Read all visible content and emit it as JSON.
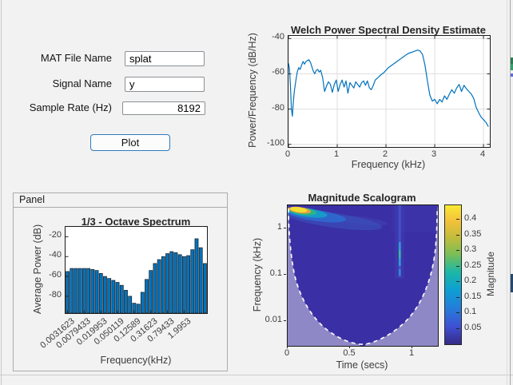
{
  "form": {
    "fields": [
      {
        "label": "MAT File Name",
        "value": "splat",
        "type": "text"
      },
      {
        "label": "Signal Name",
        "value": "y",
        "type": "text"
      },
      {
        "label": "Sample Rate (Hz)",
        "value": "8192",
        "type": "numeric"
      }
    ],
    "plot_button_label": "Plot"
  },
  "panel": {
    "title": "Panel"
  },
  "chart_data": [
    {
      "type": "line",
      "title": "Welch Power Spectral Density Estimate",
      "xlabel": "Frequency (kHz)",
      "ylabel": "Power/Frequency (dB/Hz)",
      "xlim": [
        0,
        4.13
      ],
      "ylim": [
        -101.5,
        -38.5
      ],
      "xticks": [
        0,
        1,
        2,
        3,
        4
      ],
      "yticks": [
        -40,
        -60,
        -80,
        -100
      ],
      "grid": true,
      "line_color": "#0072BD",
      "x": [
        0,
        0.02,
        0.04,
        0.06,
        0.08,
        0.1,
        0.12,
        0.15,
        0.18,
        0.21,
        0.24,
        0.27,
        0.3,
        0.33,
        0.36,
        0.39,
        0.42,
        0.45,
        0.48,
        0.51,
        0.54,
        0.57,
        0.6,
        0.63,
        0.66,
        0.7,
        0.74,
        0.78,
        0.82,
        0.86,
        0.9,
        0.94,
        0.98,
        1.02,
        1.06,
        1.1,
        1.14,
        1.18,
        1.22,
        1.26,
        1.3,
        1.34,
        1.38,
        1.42,
        1.46,
        1.5,
        1.54,
        1.58,
        1.62,
        1.66,
        1.7,
        1.74,
        1.78,
        1.82,
        1.86,
        1.9,
        1.95,
        2.0,
        2.05,
        2.1,
        2.15,
        2.2,
        2.25,
        2.3,
        2.35,
        2.4,
        2.45,
        2.5,
        2.55,
        2.6,
        2.65,
        2.7,
        2.75,
        2.8,
        2.85,
        2.9,
        2.95,
        3.0,
        3.05,
        3.1,
        3.15,
        3.2,
        3.25,
        3.3,
        3.35,
        3.4,
        3.45,
        3.5,
        3.55,
        3.6,
        3.65,
        3.7,
        3.75,
        3.8,
        3.85,
        3.9,
        3.95,
        4.0,
        4.05,
        4.1
      ],
      "y": [
        -54,
        -57,
        -66,
        -80,
        -84,
        -76,
        -70,
        -64,
        -59,
        -56.5,
        -57.5,
        -55,
        -53,
        -54.5,
        -53,
        -52.5,
        -52,
        -53.5,
        -56,
        -58.5,
        -60,
        -58,
        -57.5,
        -59,
        -58,
        -62,
        -70,
        -67,
        -64.5,
        -66,
        -70.5,
        -66,
        -63.5,
        -70,
        -66,
        -63.5,
        -67.5,
        -64,
        -71,
        -65,
        -66.5,
        -68,
        -64.5,
        -66,
        -67.5,
        -65,
        -64,
        -66.5,
        -64,
        -68,
        -69,
        -66.5,
        -63.5,
        -62.5,
        -61.5,
        -60.5,
        -59.5,
        -58,
        -56.5,
        -55.5,
        -54.5,
        -53.5,
        -52.5,
        -51.5,
        -50.5,
        -49.5,
        -48.5,
        -48,
        -47.5,
        -47,
        -46.5,
        -47,
        -49,
        -55,
        -64,
        -72,
        -75.5,
        -74.5,
        -77,
        -74.5,
        -76,
        -72.5,
        -74.5,
        -71.5,
        -69,
        -71,
        -68,
        -66,
        -70,
        -66.5,
        -68.5,
        -70,
        -71.5,
        -74,
        -79,
        -82,
        -84.5,
        -86,
        -87.5,
        -90
      ]
    },
    {
      "type": "bar",
      "title": "1/3 - Octave Spectrum",
      "xlabel": "Frequency(kHz)",
      "ylabel": "Average Power (dB)",
      "ylim": [
        -97,
        -10
      ],
      "yticks": [
        -20,
        -40,
        -60,
        -80
      ],
      "xtick_labels": [
        "0.0031623",
        "0.0079433",
        "0.019953",
        "0.050119",
        "0.12589",
        "0.31623",
        "0.79433",
        "1.9953"
      ],
      "xtick_bar_index": [
        0,
        4,
        8,
        12,
        16,
        20,
        24,
        28
      ],
      "bar_color": "#0072BD",
      "bar_edge_color": "#1c1c1c",
      "values": [
        -55,
        -52,
        -52,
        -52,
        -52,
        -52,
        -53,
        -54,
        -57,
        -60,
        -62,
        -64,
        -66,
        -69,
        -74,
        -80,
        -87,
        -88,
        -76,
        -63,
        -54,
        -47,
        -43,
        -40,
        -37,
        -35,
        -36,
        -38,
        -40,
        -39,
        -33,
        -22,
        -31,
        -47
      ]
    },
    {
      "type": "heatmap",
      "title": "Magnitude Scalogram",
      "xlabel": "Time (secs)",
      "ylabel": "Frequency (kHz)",
      "xticks": [
        0,
        0.5,
        1
      ],
      "xlim": [
        0,
        1.205
      ],
      "yscale": "log",
      "yticks_khz": [
        1,
        0.1,
        0.01
      ],
      "ylim_khz": [
        0.0029,
        3.16
      ],
      "colormap": "parula",
      "background_value_color": "#3a2fa5",
      "out_of_cone_color": "#8f88c6",
      "features": [
        {
          "name": "high-energy ridge",
          "time_range": [
            0.02,
            0.55
          ],
          "freq_khz_range": [
            1.3,
            3.0
          ],
          "peak_time": 0.1,
          "peak_freq_khz": 2.4,
          "peak_magnitude": 0.45
        },
        {
          "name": "transient vertical event",
          "time": 0.9,
          "freq_khz_range": [
            0.1,
            3.16
          ],
          "magnitude": 0.2
        },
        {
          "name": "cone-of-influence",
          "style": "white dashed boundary, shaded outside"
        }
      ],
      "colorbar": {
        "label": "Magnitude",
        "ticks": [
          0.05,
          0.1,
          0.15,
          0.2,
          0.25,
          0.3,
          0.35,
          0.4
        ],
        "range": [
          0,
          0.447
        ]
      }
    }
  ]
}
